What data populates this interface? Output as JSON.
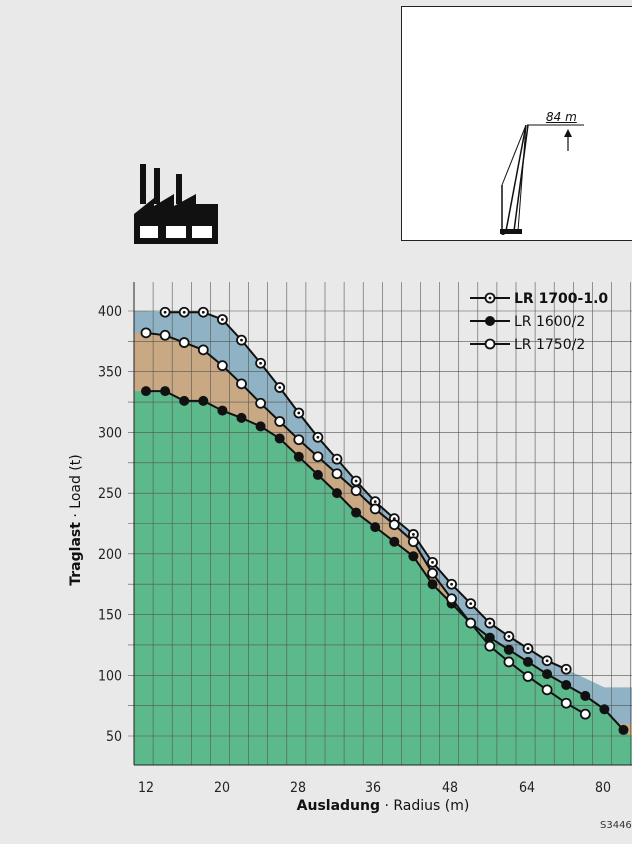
{
  "boom_diagram": {
    "length_label": "84 m"
  },
  "footer_code": "S3446",
  "colors": {
    "background": "#e9e9e9",
    "fill_lr1700": "#8fb3c4",
    "fill_lr1750": "#c9a984",
    "fill_lr1600": "#5cb98c",
    "grid": "#555555"
  },
  "chart_data": {
    "type": "line",
    "xlabel_bold": "Ausladung",
    "xlabel_rest": " · Radius (m)",
    "ylabel_bold": "Traglast",
    "ylabel_rest": " · Load (t)",
    "xlim": [
      10,
      84
    ],
    "ylim": [
      25,
      410
    ],
    "x_ticks": [
      12,
      20,
      28,
      36,
      48,
      64,
      80
    ],
    "y_ticks": [
      50,
      100,
      150,
      200,
      250,
      300,
      350,
      400
    ],
    "legend_position": "top-right",
    "series": [
      {
        "name": "LR 1700-1.0",
        "marker": "dotted-circle",
        "bold": true,
        "points": [
          [
            14,
            399
          ],
          [
            16,
            399
          ],
          [
            18,
            399
          ],
          [
            20,
            393
          ],
          [
            22,
            376
          ],
          [
            24,
            357
          ],
          [
            26,
            337
          ],
          [
            28,
            316
          ],
          [
            30,
            296
          ],
          [
            32,
            278
          ],
          [
            34,
            260
          ],
          [
            36,
            243
          ],
          [
            38,
            229
          ],
          [
            40,
            216
          ],
          [
            42,
            193
          ],
          [
            44,
            175
          ],
          [
            46,
            159
          ],
          [
            48,
            143
          ],
          [
            50,
            132
          ],
          [
            52,
            122
          ],
          [
            54,
            112
          ],
          [
            56,
            105
          ]
        ]
      },
      {
        "name": "LR 1600/2",
        "marker": "filled-circle",
        "bold": false,
        "points": [
          [
            12,
            334
          ],
          [
            14,
            334
          ],
          [
            16,
            326
          ],
          [
            18,
            326
          ],
          [
            20,
            318
          ],
          [
            22,
            312
          ],
          [
            24,
            305
          ],
          [
            26,
            295
          ],
          [
            28,
            280
          ],
          [
            30,
            265
          ],
          [
            32,
            250
          ],
          [
            34,
            234
          ],
          [
            36,
            222
          ],
          [
            38,
            210
          ],
          [
            40,
            198
          ],
          [
            42,
            175
          ],
          [
            44,
            159
          ],
          [
            46,
            143
          ],
          [
            48,
            131
          ],
          [
            50,
            121
          ],
          [
            52,
            111
          ],
          [
            54,
            101
          ],
          [
            56,
            92
          ],
          [
            58,
            83
          ],
          [
            60,
            72
          ],
          [
            62,
            55
          ]
        ]
      },
      {
        "name": "LR 1750/2",
        "marker": "open-circle",
        "bold": false,
        "points": [
          [
            12,
            382
          ],
          [
            14,
            380
          ],
          [
            16,
            374
          ],
          [
            18,
            368
          ],
          [
            20,
            355
          ],
          [
            22,
            340
          ],
          [
            24,
            324
          ],
          [
            26,
            309
          ],
          [
            28,
            294
          ],
          [
            30,
            280
          ],
          [
            32,
            266
          ],
          [
            34,
            252
          ],
          [
            36,
            237
          ],
          [
            38,
            224
          ],
          [
            40,
            210
          ],
          [
            42,
            184
          ],
          [
            44,
            163
          ],
          [
            46,
            143
          ],
          [
            48,
            124
          ],
          [
            50,
            111
          ],
          [
            52,
            99
          ],
          [
            54,
            88
          ],
          [
            56,
            77
          ],
          [
            58,
            68
          ]
        ]
      }
    ]
  }
}
